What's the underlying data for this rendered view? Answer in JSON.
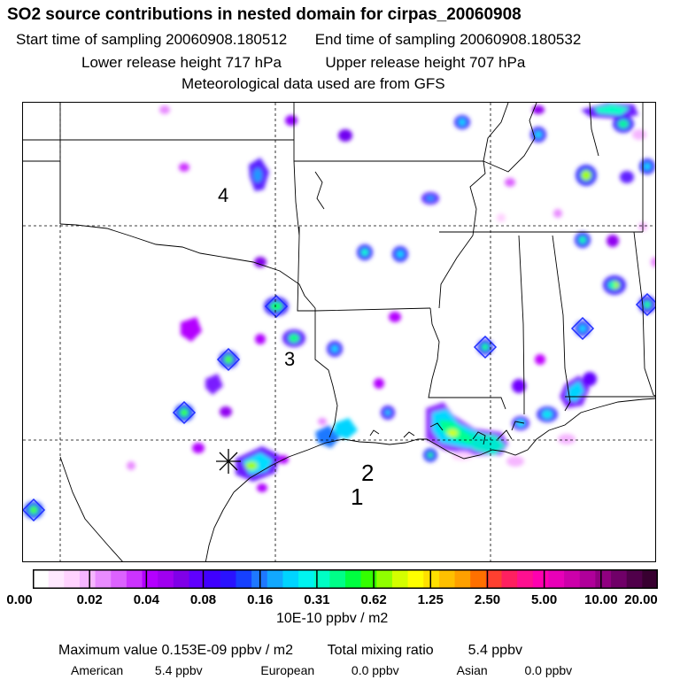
{
  "header": {
    "title": "SO2 source contributions in nested domain for cirpas_20060908",
    "start_label": "Start time of sampling",
    "start_value": "20060908.180512",
    "end_label": "End time of sampling",
    "end_value": "20060908.180532",
    "lower_label": "Lower release height",
    "lower_value": "717 hPa",
    "upper_label": "Upper release height",
    "upper_value": "707 hPa",
    "met_line": "Meteorological data used are from GFS"
  },
  "map": {
    "labels": [
      "1",
      "2",
      "3",
      "4"
    ],
    "receptor_marker": "asterisk-icon"
  },
  "legend": {
    "ticks": [
      "0.00",
      "0.02",
      "0.04",
      "0.08",
      "0.16",
      "0.31",
      "0.62",
      "1.25",
      "2.50",
      "5.00",
      "10.00",
      "20.00"
    ],
    "colors": [
      "#ffffff",
      "#ffe8ff",
      "#ffd2ff",
      "#f5b5ff",
      "#e88bff",
      "#dc62ff",
      "#cc33ff",
      "#b400ff",
      "#a000f0",
      "#8000e8",
      "#6000ff",
      "#4000ff",
      "#2a12ff",
      "#1640ff",
      "#1e78ff",
      "#12a8ff",
      "#00d4ff",
      "#00f4f0",
      "#00ffc4",
      "#00ff88",
      "#00ff40",
      "#34ff00",
      "#90ff00",
      "#d4ff00",
      "#ffff00",
      "#ffe000",
      "#ffc000",
      "#ffa000",
      "#ff7000",
      "#ff4030",
      "#ff2060",
      "#ff1090",
      "#ff00b0",
      "#e800b8",
      "#cc00aa",
      "#b0009a",
      "#900080",
      "#700068",
      "#50004a",
      "#380030"
    ],
    "units": "10E-10 ppbv / m2"
  },
  "summary": {
    "max_label": "Maximum value",
    "max_value": "0.153E-09 ppbv / m2",
    "total_label": "Total mixing ratio",
    "total_value": "5.4 ppbv",
    "american_label": "American",
    "american_value": "5.4 ppbv",
    "european_label": "European",
    "european_value": "0.0 ppbv",
    "asian_label": "Asian",
    "asian_value": "0.0 ppbv"
  }
}
